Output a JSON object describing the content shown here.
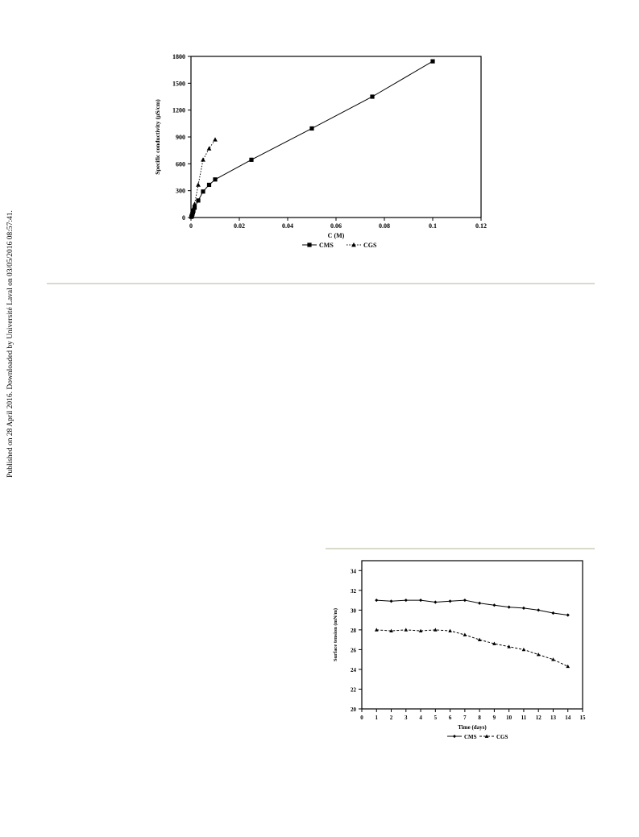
{
  "sidebar_note": "Published on 28 April 2016. Downloaded by Université Laval on 03/05/2016 08:57:41.",
  "chart_data": [
    {
      "type": "line",
      "title": "",
      "xlabel": "C (M)",
      "ylabel": "Specific conductivity (µS/cm)",
      "xlim": [
        0,
        0.12
      ],
      "ylim": [
        0,
        1800
      ],
      "x_ticks": [
        "0",
        "0.02",
        "0.04",
        "0.06",
        "0.08",
        "0.1",
        "0.12"
      ],
      "y_ticks": [
        "0",
        "300",
        "600",
        "900",
        "1200",
        "1500",
        "1800"
      ],
      "grid": false,
      "legend": "bottom",
      "series": [
        {
          "name": "CMS",
          "marker": "square",
          "line": "solid",
          "x": [
            0.0002,
            0.0004,
            0.0006,
            0.0008,
            0.001,
            0.0015,
            0.003,
            0.005,
            0.0075,
            0.01,
            0.025,
            0.05,
            0.075,
            0.1
          ],
          "y": [
            8,
            22,
            40,
            58,
            75,
            110,
            190,
            290,
            365,
            425,
            645,
            995,
            1350,
            1745
          ]
        },
        {
          "name": "CGS",
          "marker": "triangle",
          "line": "dotted",
          "x": [
            0.0002,
            0.0004,
            0.0006,
            0.0008,
            0.001,
            0.0015,
            0.003,
            0.005,
            0.0075,
            0.01
          ],
          "y": [
            12,
            30,
            55,
            80,
            105,
            150,
            365,
            645,
            770,
            870
          ]
        }
      ]
    },
    {
      "type": "line",
      "title": "",
      "xlabel": "Time (days)",
      "ylabel": "Surface tension (mN/m)",
      "xlim": [
        0,
        15
      ],
      "ylim": [
        20,
        35
      ],
      "x_ticks": [
        "0",
        "1",
        "2",
        "3",
        "4",
        "5",
        "6",
        "7",
        "8",
        "9",
        "10",
        "11",
        "12",
        "13",
        "14",
        "15"
      ],
      "y_ticks": [
        "20",
        "22",
        "24",
        "26",
        "28",
        "30",
        "32",
        "34"
      ],
      "grid": false,
      "legend": "bottom",
      "series": [
        {
          "name": "CMS",
          "marker": "diamond",
          "line": "solid",
          "x": [
            1,
            2,
            3,
            4,
            5,
            6,
            7,
            8,
            9,
            10,
            11,
            12,
            13,
            14
          ],
          "y": [
            31.0,
            30.9,
            31.0,
            31.0,
            30.8,
            30.9,
            31.0,
            30.7,
            30.5,
            30.3,
            30.2,
            30.0,
            29.7,
            29.5
          ]
        },
        {
          "name": "CGS",
          "marker": "triangle",
          "line": "dashed",
          "x": [
            1,
            2,
            3,
            4,
            5,
            6,
            7,
            8,
            9,
            10,
            11,
            12,
            13,
            14
          ],
          "y": [
            28.0,
            27.9,
            28.0,
            27.9,
            28.0,
            27.9,
            27.5,
            27.0,
            26.6,
            26.3,
            26.0,
            25.5,
            25.0,
            24.3
          ]
        }
      ]
    }
  ]
}
